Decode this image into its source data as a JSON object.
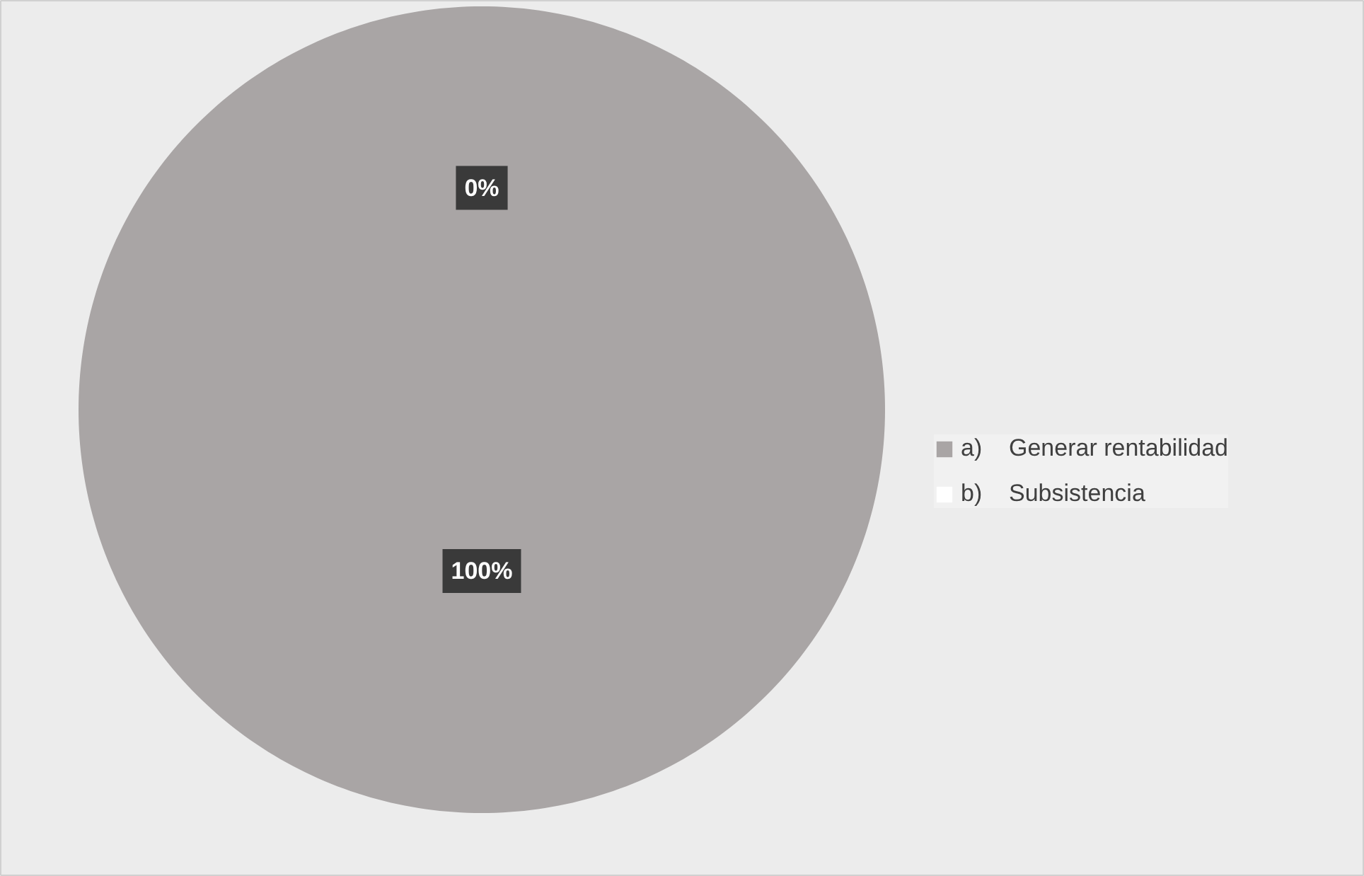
{
  "chart_data": {
    "type": "pie",
    "categories": [
      "a)    Generar rentabilidad",
      "b)    Subsistencia"
    ],
    "values": [
      100,
      0
    ],
    "colors": [
      "#a9a5a5",
      "#ffffff"
    ],
    "value_labels": [
      "100%",
      "0%"
    ],
    "legend": "right"
  }
}
